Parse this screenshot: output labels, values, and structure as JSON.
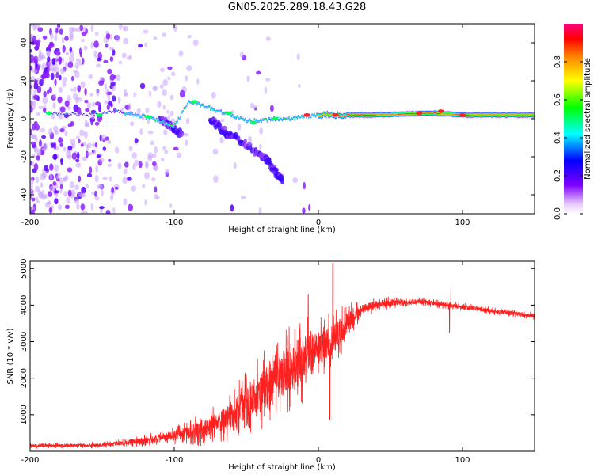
{
  "title": "GN05.2025.289.18.43.G28",
  "chart_data": [
    {
      "type": "heatmap",
      "title": "GN05.2025.289.18.43.G28",
      "xlabel": "Height of straight line (km)",
      "ylabel": "Frequency (Hz)",
      "xlim": [
        -200,
        150
      ],
      "ylim": [
        -50,
        50
      ],
      "xticks": [
        -200,
        -100,
        0,
        100
      ],
      "yticks": [
        -40,
        -20,
        0,
        20,
        40
      ],
      "colorbar": {
        "label": "Normalized spectral amplitude",
        "range": [
          0,
          1
        ],
        "ticks": [
          0.0,
          0.2,
          0.4,
          0.6,
          0.8
        ],
        "tick_labels": [
          "0.0",
          "0.2",
          "0.4",
          "0.6",
          "0.8"
        ],
        "colormap": [
          "#ffffff",
          "#8000ff",
          "#0000ff",
          "#00ffff",
          "#00ff00",
          "#ffff00",
          "#ff8000",
          "#ff0000",
          "#ff0080"
        ]
      },
      "main_line": [
        {
          "x": -185,
          "f": 3
        },
        {
          "x": -160,
          "f": 2
        },
        {
          "x": -140,
          "f": 4
        },
        {
          "x": -120,
          "f": 1
        },
        {
          "x": -100,
          "f": -4
        },
        {
          "x": -90,
          "f": 9
        },
        {
          "x": -80,
          "f": 7
        },
        {
          "x": -70,
          "f": 4
        },
        {
          "x": -60,
          "f": 2
        },
        {
          "x": -50,
          "f": -1
        },
        {
          "x": -40,
          "f": -1
        },
        {
          "x": -30,
          "f": 0
        },
        {
          "x": -20,
          "f": 0
        },
        {
          "x": 0,
          "f": 2
        },
        {
          "x": 40,
          "f": 2
        },
        {
          "x": 80,
          "f": 3
        },
        {
          "x": 100,
          "f": 2
        },
        {
          "x": 150,
          "f": 2
        }
      ],
      "branches": [
        [
          {
            "x": -110,
            "f": 0
          },
          {
            "x": -95,
            "f": -8
          }
        ],
        [
          {
            "x": -75,
            "f": 0
          },
          {
            "x": -60,
            "f": -10
          }
        ],
        [
          {
            "x": -60,
            "f": -8
          },
          {
            "x": -35,
            "f": -22
          }
        ],
        [
          {
            "x": -38,
            "f": -20
          },
          {
            "x": -25,
            "f": -32
          }
        ]
      ]
    },
    {
      "type": "line",
      "xlabel": "Height of straight line (km)",
      "ylabel": "SNR (10 * v/v)",
      "xlim": [
        -200,
        150
      ],
      "ylim": [
        0,
        5200
      ],
      "xticks": [
        -200,
        -100,
        0,
        100
      ],
      "yticks": [
        1000,
        2000,
        3000,
        4000,
        5000
      ],
      "color": "#ff2020",
      "trend": [
        {
          "x": -200,
          "y": 150
        },
        {
          "x": -150,
          "y": 170
        },
        {
          "x": -120,
          "y": 300
        },
        {
          "x": -100,
          "y": 420
        },
        {
          "x": -80,
          "y": 600
        },
        {
          "x": -60,
          "y": 950
        },
        {
          "x": -45,
          "y": 1500
        },
        {
          "x": -30,
          "y": 1900
        },
        {
          "x": -20,
          "y": 2300
        },
        {
          "x": -10,
          "y": 2500
        },
        {
          "x": 0,
          "y": 2800
        },
        {
          "x": 10,
          "y": 3050
        },
        {
          "x": 20,
          "y": 3500
        },
        {
          "x": 30,
          "y": 3900
        },
        {
          "x": 45,
          "y": 4050
        },
        {
          "x": 70,
          "y": 4100
        },
        {
          "x": 90,
          "y": 4000
        },
        {
          "x": 110,
          "y": 3900
        },
        {
          "x": 150,
          "y": 3700
        }
      ],
      "noise": [
        {
          "x": -200,
          "a": 70
        },
        {
          "x": -140,
          "a": 90
        },
        {
          "x": -100,
          "a": 250
        },
        {
          "x": -70,
          "a": 550
        },
        {
          "x": -40,
          "a": 1100
        },
        {
          "x": -15,
          "a": 1300
        },
        {
          "x": 0,
          "a": 900
        },
        {
          "x": 15,
          "a": 700
        },
        {
          "x": 30,
          "a": 250
        },
        {
          "x": 60,
          "a": 120
        },
        {
          "x": 150,
          "a": 100
        }
      ],
      "spikes": [
        {
          "x": -7,
          "y": 4300
        },
        {
          "x": 10,
          "y": 5150
        },
        {
          "x": 8,
          "y": 870
        },
        {
          "x": 92,
          "y": 4450
        },
        {
          "x": 91,
          "y": 3250
        }
      ]
    }
  ]
}
